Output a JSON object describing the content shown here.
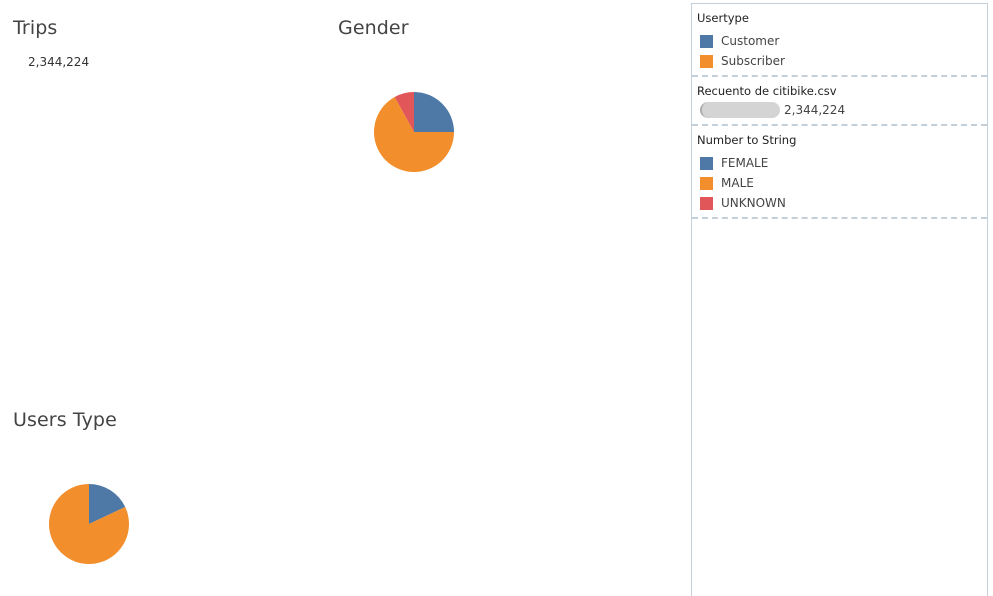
{
  "sheets": {
    "trips_title": "Trips",
    "trips_value": "2,344,224",
    "gender_title": "Gender",
    "users_title": "Users Type"
  },
  "legend": {
    "usertype": {
      "title": "Usertype",
      "items": [
        {
          "label": "Customer",
          "color": "#4e79a7"
        },
        {
          "label": "Subscriber",
          "color": "#f28e2b"
        }
      ]
    },
    "size": {
      "title": "Recuento de citibike.csv",
      "value": "2,344,224"
    },
    "gender": {
      "title": "Number to String",
      "items": [
        {
          "label": "FEMALE",
          "color": "#4e79a7"
        },
        {
          "label": "MALE",
          "color": "#f28e2b"
        },
        {
          "label": "UNKNOWN",
          "color": "#e15759"
        }
      ]
    }
  },
  "chart_data": [
    {
      "type": "pie",
      "title": "Gender",
      "categories": [
        "FEMALE",
        "MALE",
        "UNKNOWN"
      ],
      "values": [
        25,
        67,
        8
      ],
      "colors": [
        "#4e79a7",
        "#f28e2b",
        "#e15759"
      ]
    },
    {
      "type": "pie",
      "title": "Users Type",
      "categories": [
        "Customer",
        "Subscriber"
      ],
      "values": [
        18,
        82
      ],
      "colors": [
        "#4e79a7",
        "#f28e2b"
      ]
    }
  ]
}
